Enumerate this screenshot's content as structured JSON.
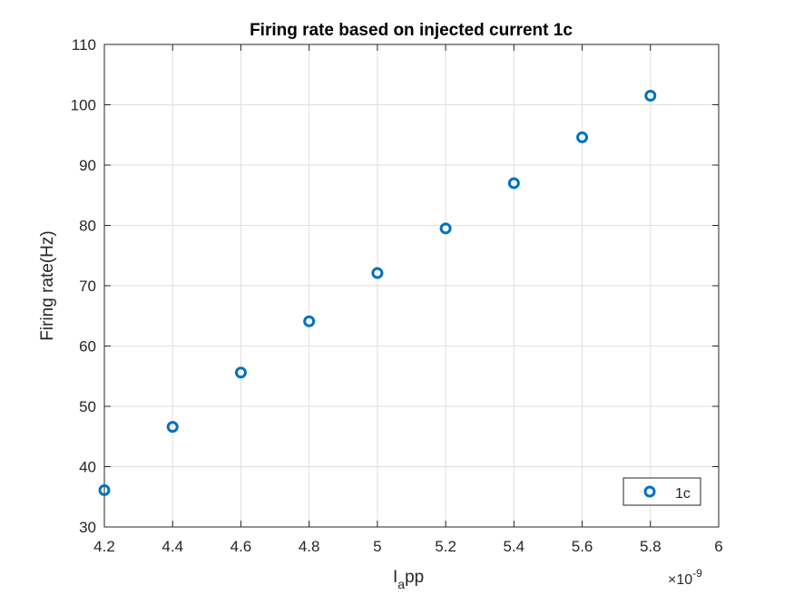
{
  "chart_data": {
    "type": "scatter",
    "title": "Firing rate based on injected current 1c",
    "xlabel": {
      "main": "I",
      "subscript": "a",
      "rest": "pp"
    },
    "ylabel": "Firing rate(Hz)",
    "x_exponent": {
      "base": "×10",
      "power": "-9"
    },
    "xlim": [
      4.2,
      6.0
    ],
    "ylim": [
      30,
      110
    ],
    "xticks": [
      4.2,
      4.4,
      4.6,
      4.8,
      5.0,
      5.2,
      5.4,
      5.6,
      5.8,
      6.0
    ],
    "xtick_labels": [
      "4.2",
      "4.4",
      "4.6",
      "4.8",
      "5",
      "5.2",
      "5.4",
      "5.6",
      "5.8",
      "6"
    ],
    "yticks": [
      30,
      40,
      50,
      60,
      70,
      80,
      90,
      100,
      110
    ],
    "ytick_labels": [
      "30",
      "40",
      "50",
      "60",
      "70",
      "80",
      "90",
      "100",
      "110"
    ],
    "grid": true,
    "legend": "bottom-right",
    "series": [
      {
        "name": "1c",
        "color": "#0072BD",
        "marker": "circle",
        "x": [
          4.2,
          4.4,
          4.6,
          4.8,
          5.0,
          5.2,
          5.4,
          5.6,
          5.8
        ],
        "y": [
          36.1,
          46.6,
          55.6,
          64.1,
          72.1,
          79.5,
          87.0,
          94.6,
          101.5
        ]
      }
    ]
  }
}
